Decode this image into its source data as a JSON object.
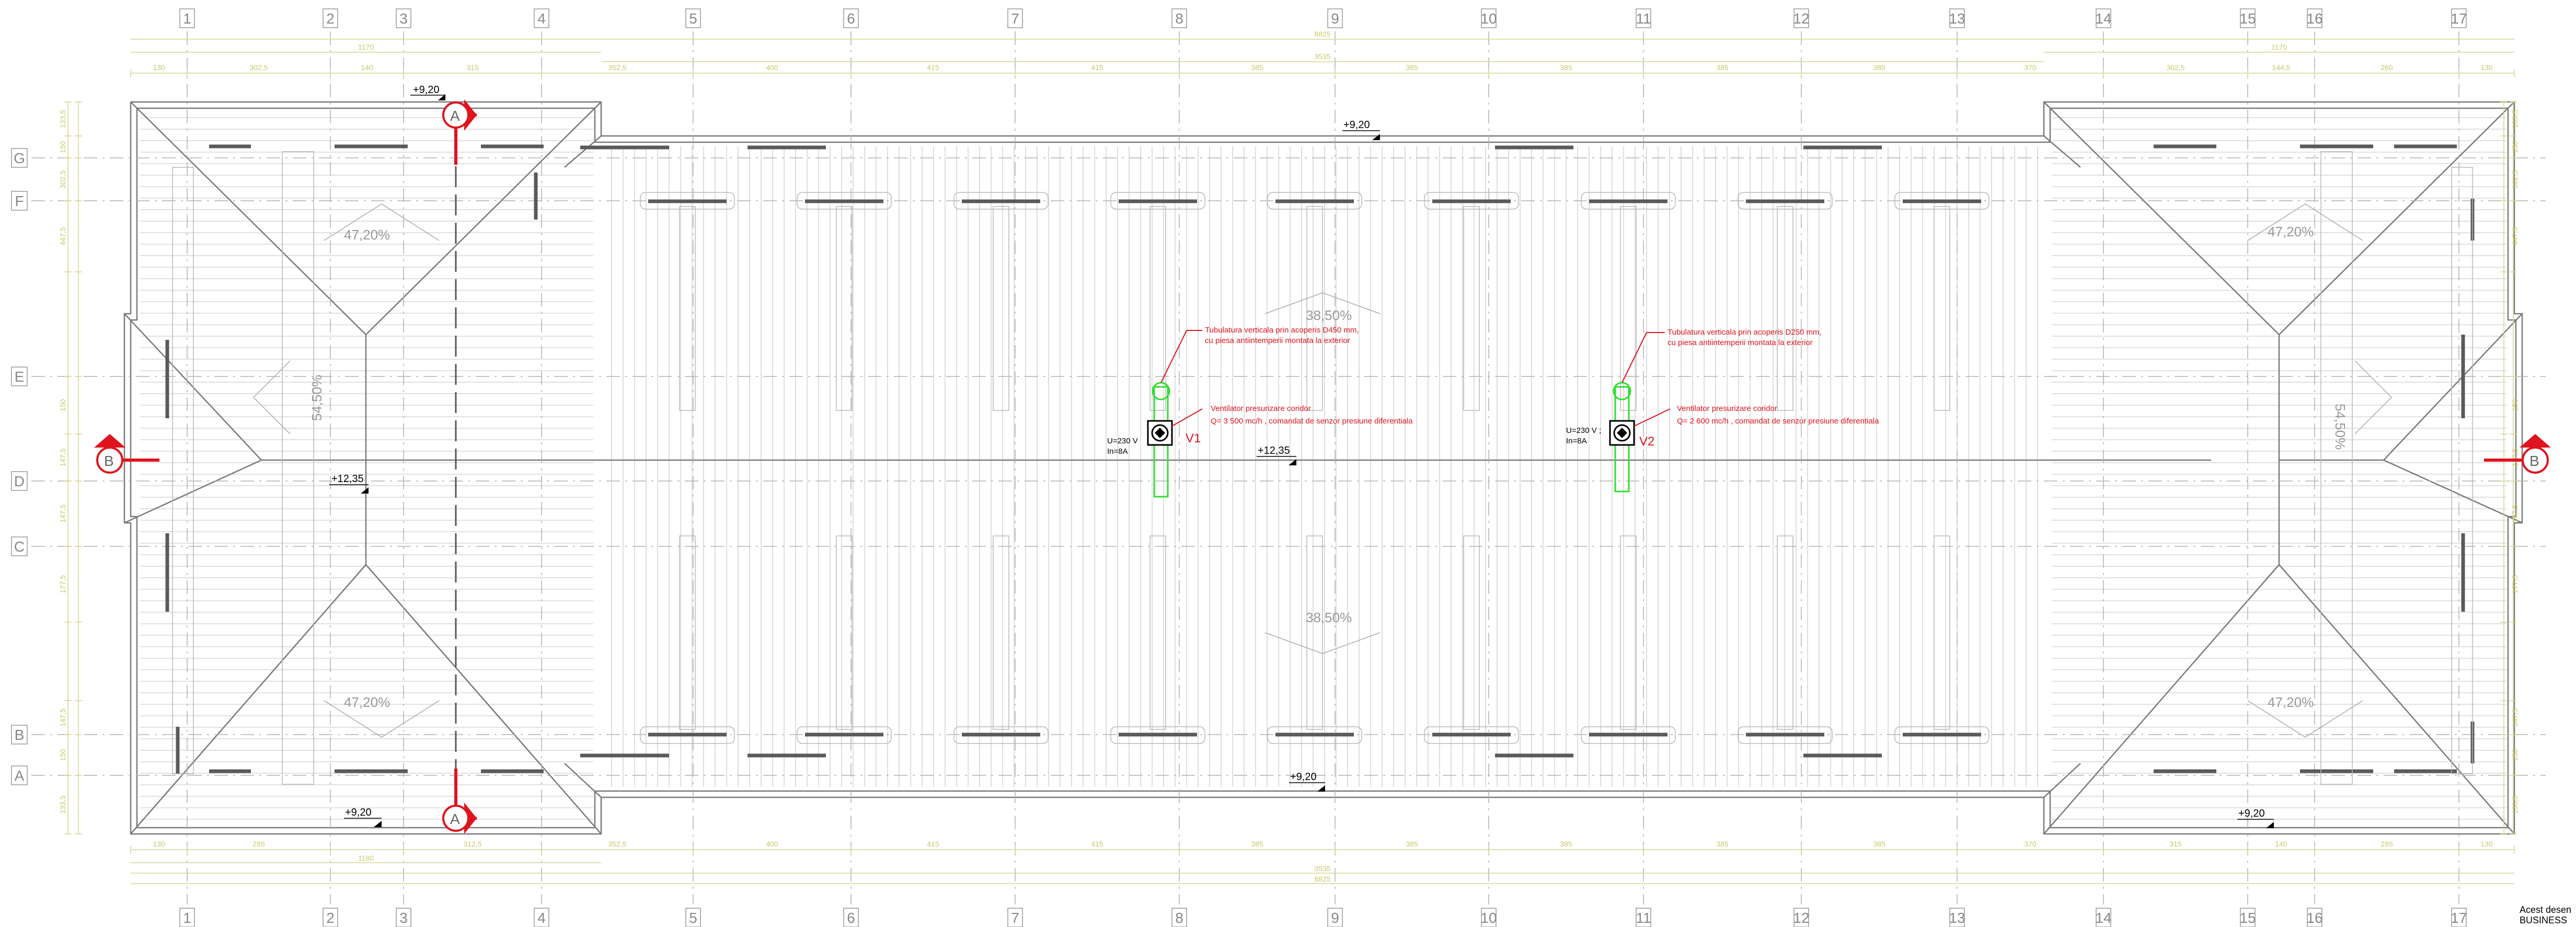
{
  "grid_columns": [
    "1",
    "2",
    "3",
    "4",
    "5",
    "6",
    "7",
    "8",
    "9",
    "10",
    "11",
    "12",
    "13",
    "14",
    "15",
    "16",
    "17"
  ],
  "grid_rows": [
    "G",
    "F",
    "E",
    "D",
    "C",
    "B",
    "A"
  ],
  "dims_top_row1": [
    "130",
    "302,5",
    "140",
    "315",
    "352,5",
    "400",
    "415",
    "415",
    "385",
    "385",
    "385",
    "385",
    "385",
    "370",
    "302,5",
    "144,5",
    "260",
    "130"
  ],
  "dims_top_totals": [
    "8825",
    "1170",
    "3535",
    "1170"
  ],
  "dims_bottom_row1": [
    "130",
    "285",
    "",
    "312,5",
    "352,5",
    "400",
    "415",
    "415",
    "385",
    "385",
    "385",
    "385",
    "385",
    "370",
    "315",
    "140",
    "285",
    "130"
  ],
  "dims_bottom_totals": [
    "1180",
    "3535",
    "8825"
  ],
  "dims_left": [
    "133,5",
    "150",
    "302,5",
    "447,5",
    "",
    "150",
    "147,5",
    "147,5",
    "177,5",
    "",
    "147,5",
    "150",
    "133,5"
  ],
  "elevations": {
    "top_left": "+9,20",
    "top_center": "+9,20",
    "left_mid": "+12,35",
    "center_mid": "+12,35",
    "bottom_left": "+9,20",
    "bottom_center": "+9,20",
    "bottom_right": "+9,20"
  },
  "slopes": {
    "tl": "47,20%",
    "tr": "47,20%",
    "bl": "47,20%",
    "br": "47,20%",
    "ml": "54,50%",
    "mr": "54,50%",
    "ct": "38,50%",
    "cb": "38,50%"
  },
  "section_marks": {
    "a": "A",
    "b": "B"
  },
  "v1": {
    "tag": "V1",
    "duct_note_1": "Tubulatura verticala prin acoperis D450 mm,",
    "duct_note_2": "cu piesa antiintemperii montata la exterior",
    "fan_note_1": "Ventilator presurizare  coridor",
    "fan_note_2": "Q= 3 500 mc/h , comandat de senzor presiune diferentiala",
    "elec_1": "U=230 V",
    "elec_2": "In=8A"
  },
  "v2": {
    "tag": "V2",
    "duct_note_1": "Tubulatura verticala prin acoperis D250 mm,",
    "duct_note_2": "cu piesa antiintemperii montata la exterior",
    "fan_note_1": "Ventilator presurizare  coridor",
    "fan_note_2": "Q= 2 600 mc/h , comandat de senzor presiune diferentiala",
    "elec_1": "U=230 V ;",
    "elec_2": "In=8A"
  },
  "corner_note_1": "Acest desen",
  "corner_note_2": "BUSINESS"
}
